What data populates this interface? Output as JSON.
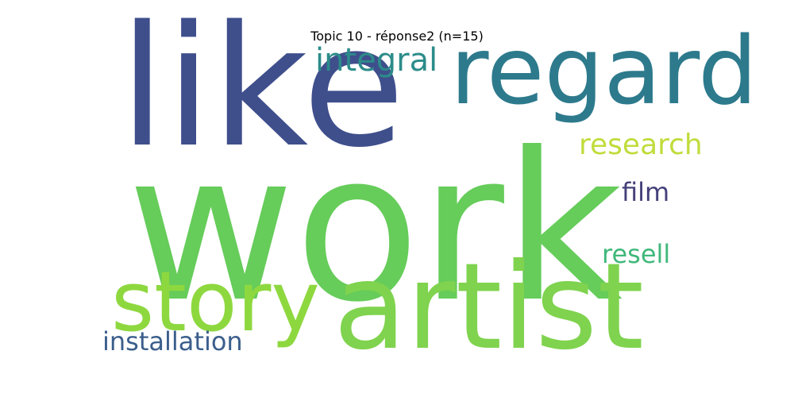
{
  "chart_data": {
    "type": "wordcloud",
    "title": "Topic 10 - réponse2 (n=15)",
    "words": [
      {
        "text": "work",
        "color": "#66cc5a"
      },
      {
        "text": "like",
        "color": "#3f4f8c"
      },
      {
        "text": "artist",
        "color": "#7fd34e"
      },
      {
        "text": "regard",
        "color": "#2d7a8c"
      },
      {
        "text": "story",
        "color": "#8ed83f"
      },
      {
        "text": "integral",
        "color": "#2c8c8a"
      },
      {
        "text": "research",
        "color": "#c0dc3c"
      },
      {
        "text": "film",
        "color": "#44407a"
      },
      {
        "text": "resell",
        "color": "#3fb87a"
      },
      {
        "text": "installation",
        "color": "#3b5e8c"
      }
    ]
  }
}
